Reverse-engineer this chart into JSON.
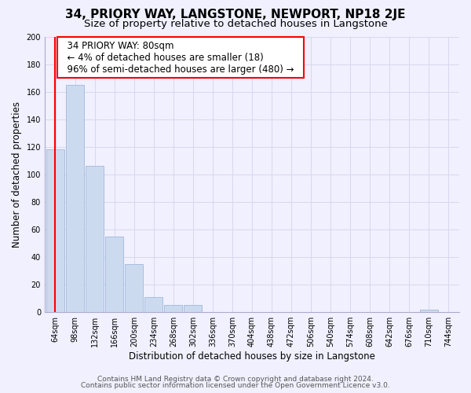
{
  "title": "34, PRIORY WAY, LANGSTONE, NEWPORT, NP18 2JE",
  "subtitle": "Size of property relative to detached houses in Langstone",
  "xlabel": "Distribution of detached houses by size in Langstone",
  "ylabel": "Number of detached properties",
  "bar_color": "#ccdaf0",
  "bar_edge_color": "#a0b8d8",
  "bin_labels": [
    "64sqm",
    "98sqm",
    "132sqm",
    "166sqm",
    "200sqm",
    "234sqm",
    "268sqm",
    "302sqm",
    "336sqm",
    "370sqm",
    "404sqm",
    "438sqm",
    "472sqm",
    "506sqm",
    "540sqm",
    "574sqm",
    "608sqm",
    "642sqm",
    "676sqm",
    "710sqm",
    "744sqm"
  ],
  "bar_heights": [
    118,
    165,
    106,
    55,
    35,
    11,
    5,
    5,
    0,
    0,
    0,
    0,
    0,
    0,
    0,
    0,
    0,
    0,
    0,
    2,
    0
  ],
  "ylim": [
    0,
    200
  ],
  "yticks": [
    0,
    20,
    40,
    60,
    80,
    100,
    120,
    140,
    160,
    180,
    200
  ],
  "annotation_title": "34 PRIORY WAY: 80sqm",
  "annotation_line1": "← 4% of detached houses are smaller (18)",
  "annotation_line2": "96% of semi-detached houses are larger (480) →",
  "footer1": "Contains HM Land Registry data © Crown copyright and database right 2024.",
  "footer2": "Contains public sector information licensed under the Open Government Licence v3.0.",
  "background_color": "#f0f0ff",
  "grid_color": "#d8d8ee",
  "title_fontsize": 11,
  "subtitle_fontsize": 9.5,
  "axis_label_fontsize": 8.5,
  "tick_fontsize": 7,
  "annotation_fontsize": 8.5,
  "footer_fontsize": 6.5
}
